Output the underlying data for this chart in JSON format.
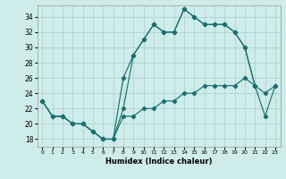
{
  "xlabel": "Humidex (Indice chaleur)",
  "bg_color": "#ceecea",
  "grid_color": "#aed4d0",
  "line_color": "#1a7070",
  "xlim": [
    -0.5,
    23.5
  ],
  "ylim": [
    17.0,
    35.5
  ],
  "xticks": [
    0,
    1,
    2,
    3,
    4,
    5,
    6,
    7,
    8,
    9,
    10,
    11,
    12,
    13,
    14,
    15,
    16,
    17,
    18,
    19,
    20,
    21,
    22,
    23
  ],
  "yticks": [
    18,
    20,
    22,
    24,
    26,
    28,
    30,
    32,
    34
  ],
  "line1_x": [
    0,
    1,
    2,
    3,
    4,
    5,
    6,
    7,
    8,
    9,
    10,
    11,
    12,
    13,
    14,
    15,
    16,
    17,
    18,
    19,
    20,
    21
  ],
  "line1_y": [
    23,
    21,
    21,
    20,
    20,
    19,
    18,
    18,
    22,
    29,
    31,
    33,
    32,
    32,
    35,
    34,
    33,
    33,
    33,
    32,
    30,
    25
  ],
  "line2_x": [
    0,
    1,
    2,
    3,
    4,
    5,
    6,
    7,
    8,
    9,
    10,
    11,
    12,
    13,
    14,
    15,
    16,
    17,
    18,
    19,
    20,
    21,
    22,
    23
  ],
  "line2_y": [
    23,
    21,
    21,
    20,
    20,
    19,
    18,
    18,
    26,
    29,
    31,
    33,
    32,
    32,
    35,
    34,
    33,
    33,
    33,
    32,
    30,
    25,
    21,
    25
  ],
  "line3_x": [
    0,
    1,
    2,
    3,
    4,
    5,
    6,
    7,
    8,
    9,
    10,
    11,
    12,
    13,
    14,
    15,
    16,
    17,
    18,
    19,
    20,
    21,
    22,
    23
  ],
  "line3_y": [
    23,
    21,
    21,
    20,
    20,
    19,
    18,
    18,
    21,
    21,
    22,
    22,
    23,
    23,
    24,
    24,
    25,
    25,
    25,
    25,
    26,
    25,
    24,
    25
  ]
}
